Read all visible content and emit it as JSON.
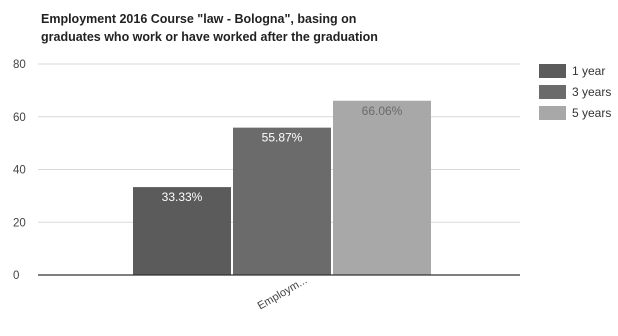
{
  "colors": {
    "bar_1_year": "#5b5b5b",
    "bar_3_years": "#6b6b6b",
    "bar_5_years": "#a8a8a8",
    "axis": "#333333",
    "grid": "#d9d9d9",
    "label_light": "#ffffff",
    "tick_text": "#444444"
  },
  "chart_data": {
    "type": "bar",
    "title_lines": [
      "Employment 2016 Course \"law - Bologna\", basing on",
      "graduates who work or have worked after the graduation"
    ],
    "categories": [
      "Employm..."
    ],
    "series": [
      {
        "name": "1 year",
        "values": [
          33.33
        ],
        "label": "33.33%"
      },
      {
        "name": "3 years",
        "values": [
          55.87
        ],
        "label": "55.87%"
      },
      {
        "name": "5 years",
        "values": [
          66.06
        ],
        "label": "66.06%"
      }
    ],
    "y_ticks": [
      "0",
      "20",
      "40",
      "60",
      "80"
    ],
    "ylim": [
      0,
      80
    ],
    "grid": true,
    "legend_position": "right",
    "xlabel": "",
    "ylabel": ""
  }
}
